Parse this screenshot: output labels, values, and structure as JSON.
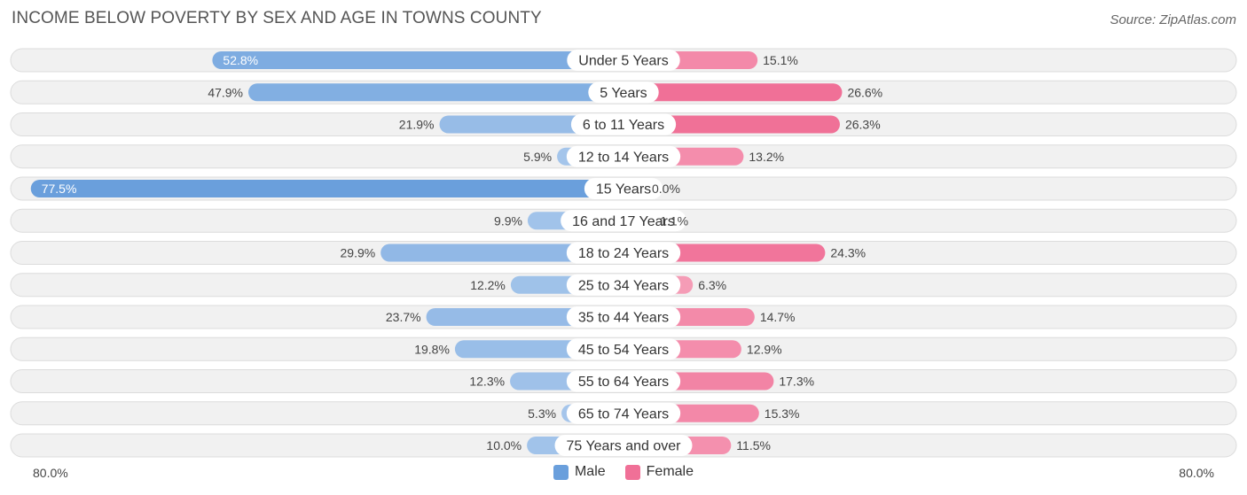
{
  "title": "INCOME BELOW POVERTY BY SEX AND AGE IN TOWNS COUNTY",
  "source": "Source: ZipAtlas.com",
  "colors": {
    "male": "#6a9fdc",
    "male_light": "#a9c8ec",
    "female": "#f07097",
    "female_light": "#f7a9c0",
    "row_bg": "#f1f1f1",
    "row_border": "#dcdcdc"
  },
  "legend": {
    "male_label": "Male",
    "female_label": "Female"
  },
  "axis": {
    "left_label": "80.0%",
    "right_label": "80.0%"
  },
  "chart_data": {
    "type": "bar",
    "orientation": "horizontal-diverging",
    "title": "INCOME BELOW POVERTY BY SEX AND AGE IN TOWNS COUNTY",
    "categories": [
      "Under 5 Years",
      "5 Years",
      "6 to 11 Years",
      "12 to 14 Years",
      "15 Years",
      "16 and 17 Years",
      "18 to 24 Years",
      "25 to 34 Years",
      "35 to 44 Years",
      "45 to 54 Years",
      "55 to 64 Years",
      "65 to 74 Years",
      "75 Years and over"
    ],
    "series": [
      {
        "name": "Male",
        "values": [
          52.8,
          47.9,
          21.9,
          5.9,
          77.5,
          9.9,
          29.9,
          12.2,
          23.7,
          19.8,
          12.3,
          5.3,
          10.0
        ],
        "labels": [
          "52.8%",
          "47.9%",
          "21.9%",
          "5.9%",
          "77.5%",
          "9.9%",
          "29.9%",
          "12.2%",
          "23.7%",
          "19.8%",
          "12.3%",
          "5.3%",
          "10.0%"
        ]
      },
      {
        "name": "Female",
        "values": [
          15.1,
          26.6,
          26.3,
          13.2,
          0.0,
          1.1,
          24.3,
          6.3,
          14.7,
          12.9,
          17.3,
          15.3,
          11.5
        ],
        "labels": [
          "15.1%",
          "26.6%",
          "26.3%",
          "13.2%",
          "0.0%",
          "1.1%",
          "24.3%",
          "6.3%",
          "14.7%",
          "12.9%",
          "17.3%",
          "15.3%",
          "11.5%"
        ]
      }
    ],
    "xlim": [
      0,
      80
    ],
    "xlabel_left": "80.0%",
    "xlabel_right": "80.0%",
    "legend_position": "bottom-center"
  }
}
